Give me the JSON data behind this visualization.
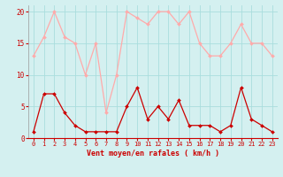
{
  "x": [
    0,
    1,
    2,
    3,
    4,
    5,
    6,
    7,
    8,
    9,
    10,
    11,
    12,
    13,
    14,
    15,
    16,
    17,
    18,
    19,
    20,
    21,
    22,
    23
  ],
  "wind_avg": [
    1,
    7,
    7,
    4,
    2,
    1,
    1,
    1,
    1,
    5,
    8,
    3,
    5,
    3,
    6,
    2,
    2,
    2,
    1,
    2,
    8,
    3,
    2,
    1
  ],
  "wind_gust": [
    13,
    16,
    20,
    16,
    15,
    10,
    15,
    4,
    10,
    20,
    19,
    18,
    20,
    20,
    18,
    20,
    15,
    13,
    13,
    15,
    18,
    15,
    15,
    13
  ],
  "avg_color": "#cc0000",
  "gust_color": "#ffaaaa",
  "bg_color": "#d4f0f0",
  "grid_color": "#aadddd",
  "xlabel": "Vent moyen/en rafales ( km/h )",
  "xlabel_color": "#cc0000",
  "yticks": [
    0,
    5,
    10,
    15,
    20
  ],
  "ylim": [
    0,
    21
  ],
  "xlim": [
    -0.5,
    23.5
  ]
}
